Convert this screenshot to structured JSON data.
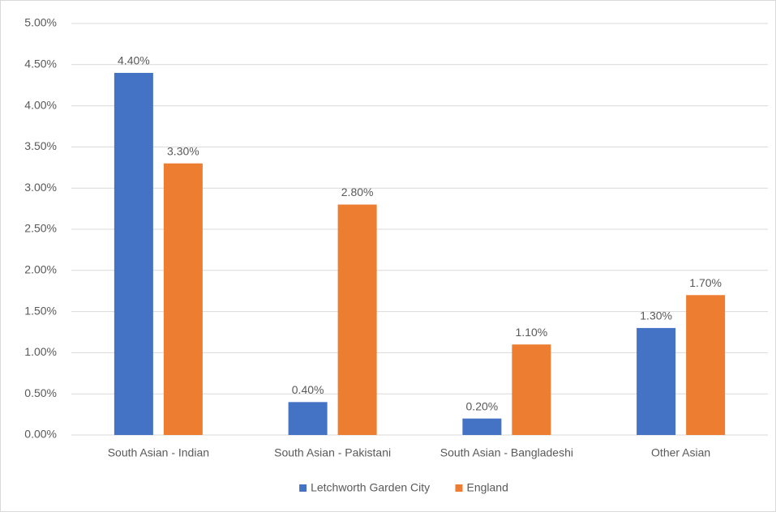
{
  "chart_data": {
    "type": "bar",
    "categories": [
      "South Asian - Indian",
      "South Asian - Pakistani",
      "South Asian - Bangladeshi",
      "Other Asian"
    ],
    "series": [
      {
        "name": "Letchworth Garden City",
        "color": "#4472c4",
        "values": [
          4.4,
          0.4,
          0.2,
          1.3
        ],
        "value_labels": [
          "4.40%",
          "0.40%",
          "0.20%",
          "1.30%"
        ]
      },
      {
        "name": "England",
        "color": "#ed7d31",
        "values": [
          3.3,
          2.8,
          1.1,
          1.7
        ],
        "value_labels": [
          "3.30%",
          "2.80%",
          "1.10%",
          "1.70%"
        ]
      }
    ],
    "ylim": [
      0,
      5
    ],
    "yticks": [
      {
        "value": 0,
        "label": "0.00%"
      },
      {
        "value": 0.5,
        "label": "0.50%"
      },
      {
        "value": 1,
        "label": "1.00%"
      },
      {
        "value": 1.5,
        "label": "1.50%"
      },
      {
        "value": 2,
        "label": "2.00%"
      },
      {
        "value": 2.5,
        "label": "2.50%"
      },
      {
        "value": 3,
        "label": "3.00%"
      },
      {
        "value": 3.5,
        "label": "3.50%"
      },
      {
        "value": 4,
        "label": "4.00%"
      },
      {
        "value": 4.5,
        "label": "4.50%"
      },
      {
        "value": 5,
        "label": "5.00%"
      }
    ],
    "grid": true,
    "legend": "bottom"
  }
}
